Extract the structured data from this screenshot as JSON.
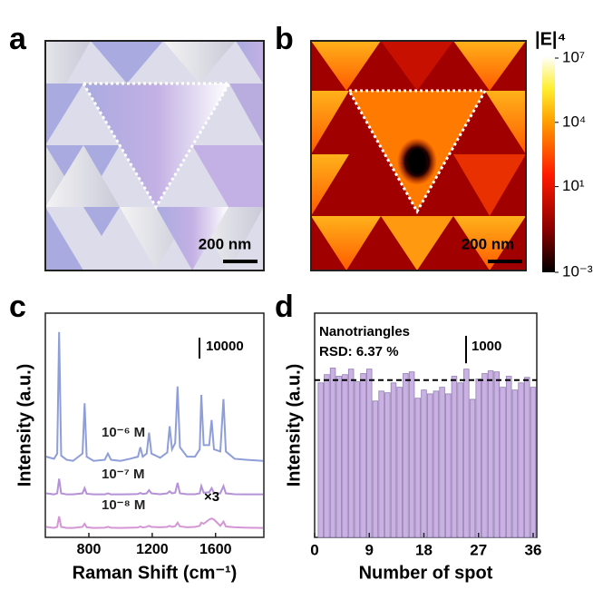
{
  "panel_labels": [
    "a",
    "b",
    "c",
    "d"
  ],
  "panel_a": {
    "scale_bar": "200 nm"
  },
  "panel_b": {
    "scale_bar": "200 nm",
    "colorbar": {
      "title": "|E|⁴",
      "log_scale": true,
      "lim": [
        0.001,
        10000000
      ],
      "ticks": [
        {
          "value": 10000000,
          "label": "10⁷"
        },
        {
          "value": 10000,
          "label": "10⁴"
        },
        {
          "value": 10,
          "label": "10¹"
        },
        {
          "value": 0.001,
          "label": "10⁻³"
        }
      ]
    }
  },
  "chart_data": [
    {
      "type": "line",
      "xlabel": "Raman Shift (cm⁻¹)",
      "ylabel": "Intensity (a.u.)",
      "x": [
        530,
        580,
        600,
        612,
        625,
        660,
        700,
        760,
        773,
        786,
        830,
        900,
        920,
        940,
        1000,
        1060,
        1110,
        1125,
        1140,
        1165,
        1180,
        1195,
        1250,
        1295,
        1310,
        1325,
        1345,
        1360,
        1375,
        1420,
        1470,
        1500,
        1510,
        1525,
        1560,
        1575,
        1590,
        1630,
        1650,
        1665,
        1720,
        1800,
        1900
      ],
      "xlim": [
        525,
        1905
      ],
      "xticks": [
        800,
        1200,
        1600
      ],
      "ylim": [
        0,
        107000
      ],
      "series": [
        {
          "name": "10⁻⁶ M",
          "color": "#8e9ed8",
          "values": [
            38500,
            37500,
            40000,
            98000,
            39000,
            37000,
            36500,
            40000,
            64000,
            38500,
            36500,
            37000,
            40000,
            37000,
            36500,
            37500,
            38500,
            43000,
            38500,
            40000,
            50000,
            40000,
            38000,
            40500,
            53000,
            42000,
            45000,
            72000,
            43000,
            38500,
            38500,
            42000,
            68000,
            44000,
            44000,
            56000,
            42000,
            41000,
            66000,
            41000,
            37500,
            37000,
            36500
          ]
        },
        {
          "name": "10⁻⁷ M",
          "color": "#b592d8",
          "values": [
            21000,
            20500,
            21000,
            28000,
            21000,
            20500,
            20500,
            21000,
            23500,
            20800,
            20500,
            20500,
            21000,
            20500,
            20500,
            20600,
            20700,
            21200,
            20700,
            21000,
            22500,
            21000,
            20600,
            21000,
            22000,
            21000,
            21300,
            26000,
            21000,
            20600,
            20600,
            21000,
            24500,
            21300,
            21500,
            23500,
            21200,
            21000,
            24500,
            21000,
            20600,
            20500,
            20500
          ]
        },
        {
          "name": "10⁻⁸ M",
          "color": "#d496d4",
          "values": [
            5000,
            4500,
            5000,
            10000,
            5000,
            4500,
            4500,
            5000,
            6500,
            4800,
            4500,
            4600,
            5000,
            4600,
            4500,
            4600,
            4700,
            5200,
            4700,
            5000,
            5500,
            5000,
            4800,
            5000,
            5500,
            5000,
            5300,
            7000,
            5200,
            4800,
            5000,
            5500,
            7000,
            6500,
            8500,
            9000,
            8500,
            5500,
            7500,
            5200,
            4800,
            4600,
            4500
          ]
        }
      ],
      "annotation": "×3",
      "scale_bar": 10000
    },
    {
      "type": "bar",
      "xlabel": "Number of spot",
      "ylabel": "Intensity (a.u.)",
      "x": [
        1,
        2,
        3,
        4,
        5,
        6,
        7,
        8,
        9,
        10,
        11,
        12,
        13,
        14,
        15,
        16,
        17,
        18,
        19,
        20,
        21,
        22,
        23,
        24,
        25,
        26,
        27,
        28,
        29,
        30,
        31,
        32,
        33,
        34,
        35,
        36
      ],
      "values": [
        5630,
        5930,
        6170,
        5870,
        5930,
        6130,
        5670,
        5970,
        6130,
        4970,
        5330,
        5270,
        5630,
        5470,
        5970,
        6030,
        5070,
        5370,
        5230,
        5330,
        5470,
        5230,
        5870,
        5630,
        6130,
        5030,
        5770,
        5970,
        6070,
        6030,
        5470,
        5870,
        5370,
        5630,
        5830,
        5470
      ],
      "color": "#cbb0e3",
      "edge_color": "#8f80b0",
      "xlim": [
        0,
        36.6
      ],
      "xticks": [
        0,
        9,
        18,
        27,
        36
      ],
      "ylim": [
        0,
        8170
      ],
      "reference_line": 5730,
      "legend_title": "Nanotriangles",
      "note": "RSD: 6.37 %",
      "scale_bar": 1000
    }
  ]
}
